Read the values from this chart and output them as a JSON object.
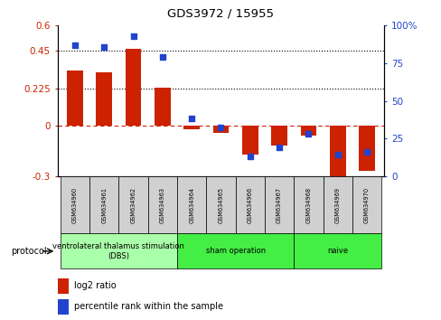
{
  "title": "GDS3972 / 15955",
  "samples": [
    "GSM634960",
    "GSM634961",
    "GSM634962",
    "GSM634963",
    "GSM634964",
    "GSM634965",
    "GSM634966",
    "GSM634967",
    "GSM634968",
    "GSM634969",
    "GSM634970"
  ],
  "log2_ratio": [
    0.33,
    0.32,
    0.46,
    0.23,
    -0.02,
    -0.04,
    -0.17,
    -0.12,
    -0.06,
    -0.31,
    -0.27
  ],
  "percentile_rank": [
    87,
    86,
    93,
    79,
    38,
    32,
    13,
    19,
    28,
    14,
    16
  ],
  "bar_color": "#cc2200",
  "dot_color": "#2244cc",
  "ylim_left": [
    -0.3,
    0.6
  ],
  "ylim_right": [
    0,
    100
  ],
  "yticks_left": [
    -0.3,
    0.0,
    0.225,
    0.45,
    0.6
  ],
  "ytick_labels_left": [
    "-0.3",
    "0",
    "0.225",
    "0.45",
    "0.6"
  ],
  "yticks_right": [
    0,
    25,
    50,
    75,
    100
  ],
  "ytick_labels_right": [
    "0",
    "25",
    "50",
    "75",
    "100%"
  ],
  "hline_dotted": [
    0.225,
    0.45
  ],
  "hline_dashed": 0.0,
  "protocol_groups": [
    {
      "label": "ventrolateral thalamus stimulation\n(DBS)",
      "start": 0,
      "end": 3,
      "color": "#aaffaa"
    },
    {
      "label": "sham operation",
      "start": 4,
      "end": 7,
      "color": "#44ee44"
    },
    {
      "label": "naive",
      "start": 8,
      "end": 10,
      "color": "#44ee44"
    }
  ],
  "protocol_label": "protocol",
  "legend_items": [
    {
      "label": "log2 ratio",
      "color": "#cc2200"
    },
    {
      "label": "percentile rank within the sample",
      "color": "#2244cc"
    }
  ],
  "background_color": "#ffffff",
  "cell_bg": "#d0d0d0",
  "ylabel_left_color": "#cc2200",
  "ylabel_right_color": "#2244cc"
}
